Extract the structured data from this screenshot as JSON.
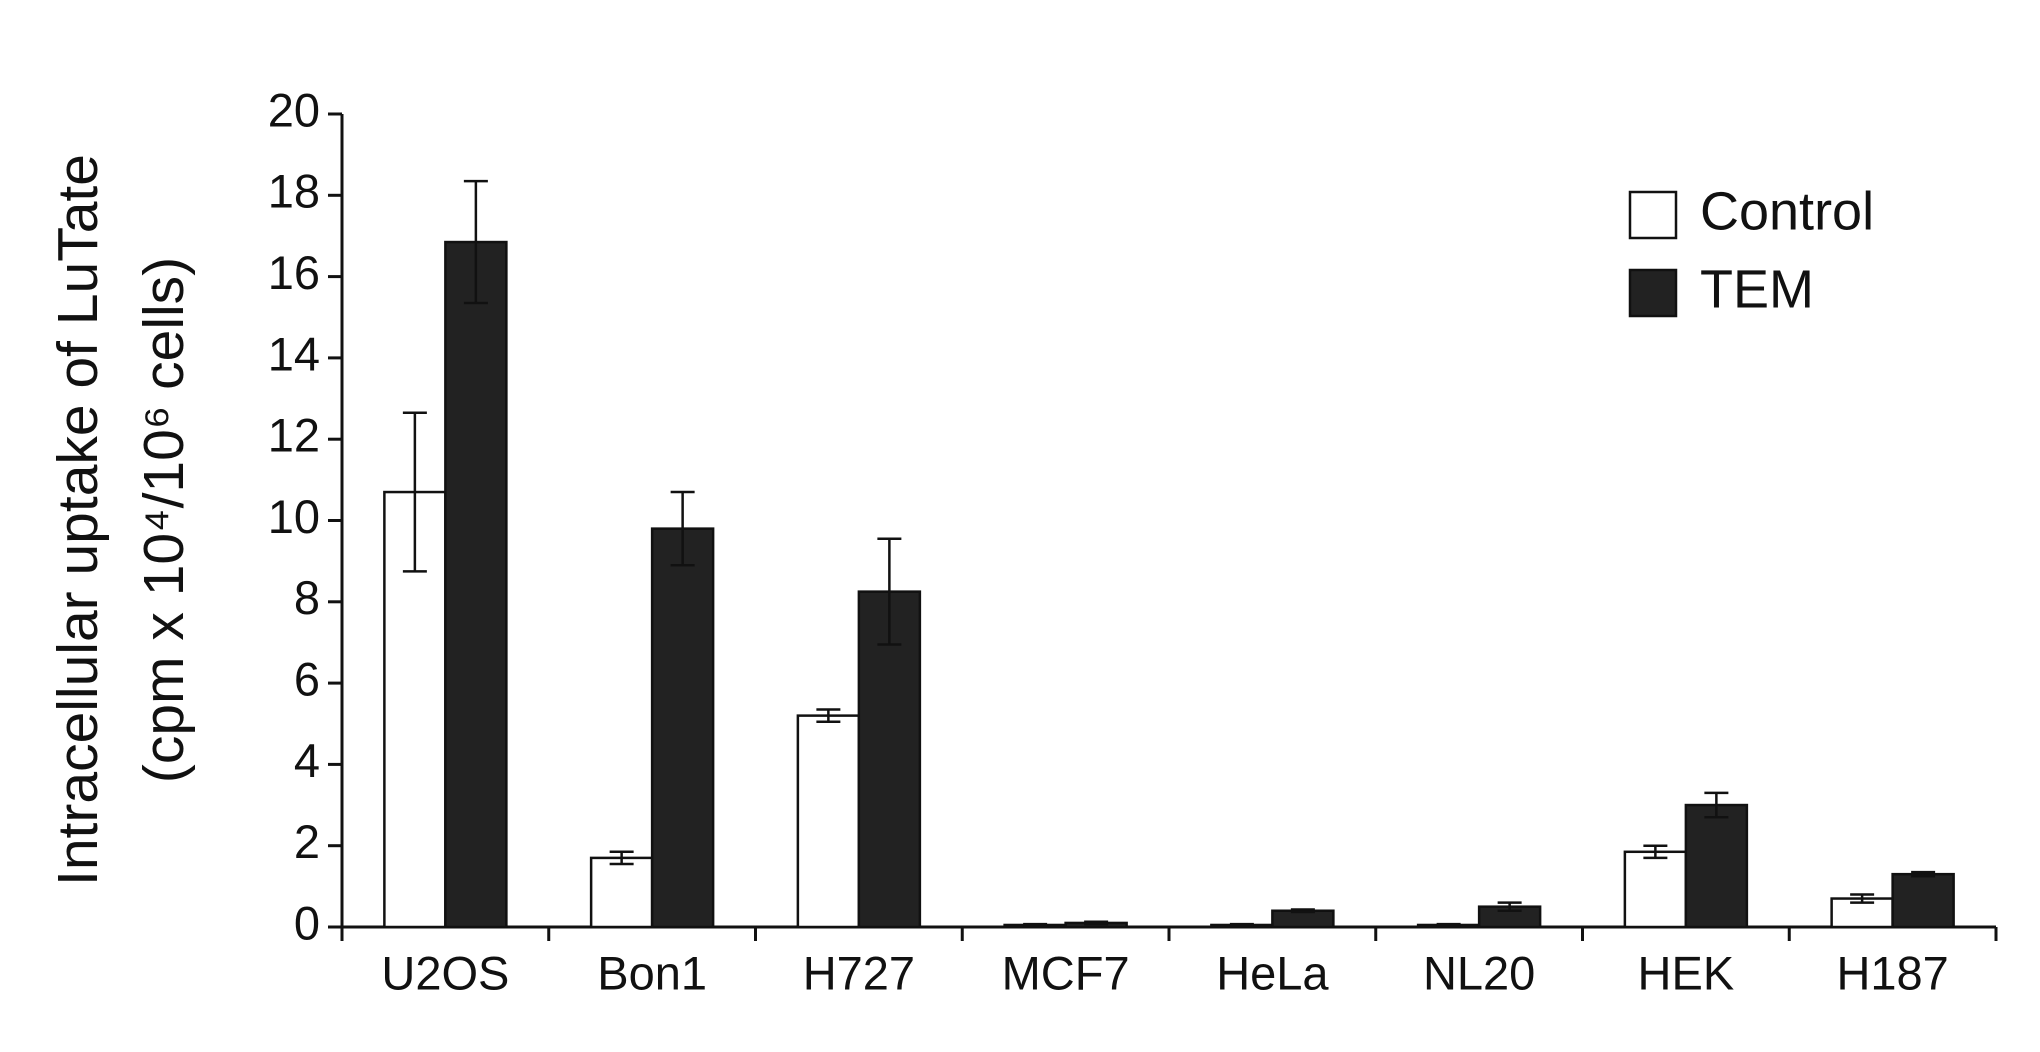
{
  "chart_data": {
    "type": "bar",
    "y_label": [
      "Intracellular uptake of LuTate",
      "(cpm x 10⁴/10⁶ cells)"
    ],
    "categories": [
      "U2OS",
      "Bon1",
      "H727",
      "MCF7",
      "HeLa",
      "NL20",
      "HEK",
      "H187"
    ],
    "series": [
      {
        "name": "Control",
        "color": "#ffffff",
        "values": [
          10.7,
          1.7,
          5.2,
          0.05,
          0.05,
          0.05,
          1.85,
          0.7
        ],
        "errors": [
          1.95,
          0.15,
          0.15,
          0.02,
          0.02,
          0.02,
          0.15,
          0.1
        ]
      },
      {
        "name": "TEM",
        "color": "#222222",
        "values": [
          16.85,
          9.8,
          8.25,
          0.1,
          0.4,
          0.5,
          3.0,
          1.3
        ],
        "errors": [
          1.5,
          0.9,
          1.3,
          0.03,
          0.03,
          0.1,
          0.3,
          0.05
        ]
      }
    ],
    "ylim": [
      0,
      20
    ],
    "yticks": [
      0,
      2,
      4,
      6,
      8,
      10,
      12,
      14,
      16,
      18,
      20
    ],
    "legend": "upper right"
  }
}
